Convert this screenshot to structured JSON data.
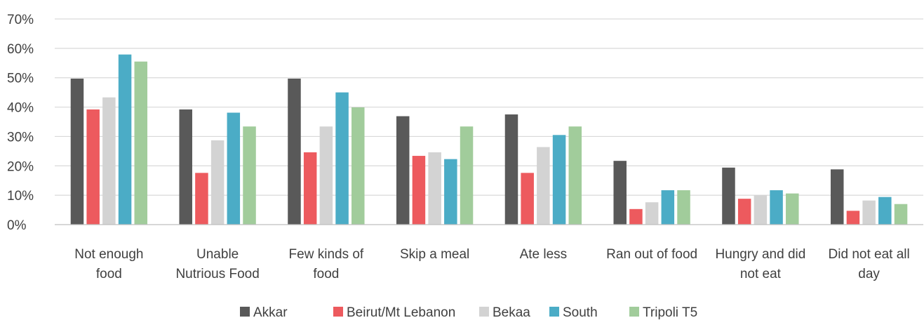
{
  "chart_data": {
    "type": "bar",
    "title": "",
    "xlabel": "",
    "ylabel": "",
    "ylim": [
      0,
      70
    ],
    "y_ticks": [
      0,
      10,
      20,
      30,
      40,
      50,
      60,
      70
    ],
    "y_tick_format": "percent",
    "grid": true,
    "legend_position": "bottom",
    "categories": [
      [
        "Not enough",
        "food"
      ],
      [
        "Unable",
        "Nutrious Food"
      ],
      [
        "Few kinds of",
        "food"
      ],
      [
        "Skip a meal"
      ],
      [
        "Ate less"
      ],
      [
        "Ran out of food"
      ],
      [
        "Hungry and did",
        "not eat"
      ],
      [
        "Did not eat all",
        "day"
      ]
    ],
    "series": [
      {
        "name": "Akkar",
        "color": "#595959",
        "values": [
          49.7,
          39.2,
          49.7,
          36.9,
          37.5,
          21.7,
          19.4,
          18.8
        ]
      },
      {
        "name": "Beirut/Mt Lebanon",
        "color": "#ed5a5e",
        "values": [
          39.2,
          17.6,
          24.6,
          23.4,
          17.6,
          5.3,
          8.8,
          4.7
        ]
      },
      {
        "name": "Bekaa",
        "color": "#d3d3d3",
        "values": [
          43.3,
          28.7,
          33.4,
          24.6,
          26.4,
          7.6,
          10.0,
          8.2
        ]
      },
      {
        "name": "South",
        "color": "#4bacc6",
        "values": [
          57.9,
          38.1,
          45.0,
          22.3,
          30.5,
          11.7,
          11.7,
          9.4
        ]
      },
      {
        "name": "Tripoli T5",
        "color": "#a1cc9b",
        "values": [
          55.5,
          33.4,
          39.9,
          33.4,
          33.4,
          11.7,
          10.6,
          7.0
        ]
      }
    ]
  }
}
